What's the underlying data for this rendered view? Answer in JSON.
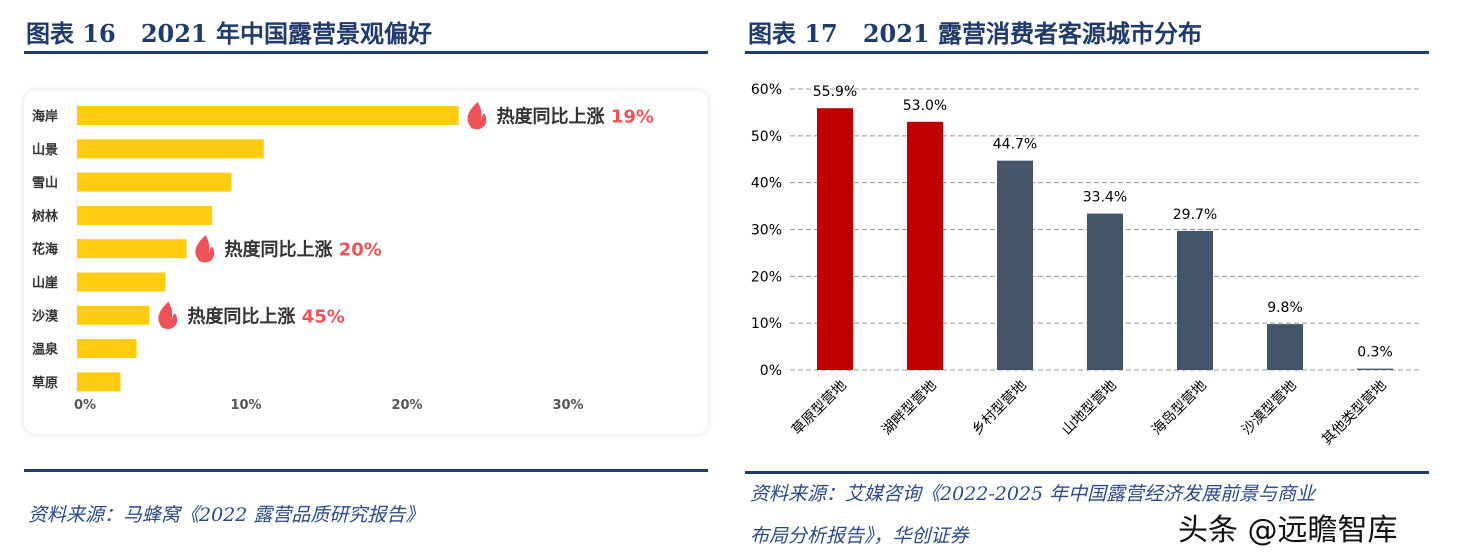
{
  "left": {
    "title": "图表 16   2021 年中国露营景观偏好",
    "source": "资料来源：马蜂窝《2022 露营品质研究报告》"
  },
  "right": {
    "title": "图表 17   2021 露营消费者客源城市分布",
    "source_line1": "资料来源：艾媒咨询《2022-2025 年中国露营经济发展前景与商业",
    "source_line2": "布局分析报告》，华创证券"
  },
  "watermark": "头条 @远瞻智库",
  "chart_data": [
    {
      "type": "bar",
      "orientation": "horizontal",
      "categories": [
        "海岸",
        "山景",
        "雪山",
        "树林",
        "花海",
        "山崖",
        "沙漠",
        "温泉",
        "草原"
      ],
      "values": [
        23.7,
        11.6,
        9.6,
        8.4,
        6.8,
        5.5,
        4.5,
        3.7,
        2.7
      ],
      "xlim": [
        0,
        35
      ],
      "xticks": [
        "0%",
        "10%",
        "20%",
        "30%"
      ],
      "bar_color": "#FFCC0F",
      "annotations": [
        {
          "category": "海岸",
          "icon": "flame-icon",
          "text": "热度同比上涨",
          "value": "19%"
        },
        {
          "category": "花海",
          "icon": "flame-icon",
          "text": "热度同比上涨",
          "value": "20%"
        },
        {
          "category": "沙漠",
          "icon": "flame-icon",
          "text": "热度同比上涨",
          "value": "45%"
        }
      ],
      "annotation_color": "#F0525A"
    },
    {
      "type": "bar",
      "categories": [
        "草原型营地",
        "湖畔型营地",
        "乡村型营地",
        "山地型营地",
        "海岛型营地",
        "沙漠型营地",
        "其他类型营地"
      ],
      "values": [
        55.9,
        53.0,
        44.7,
        33.4,
        29.7,
        9.8,
        0.3
      ],
      "labels": [
        "55.9%",
        "53.0%",
        "44.7%",
        "33.4%",
        "29.7%",
        "9.8%",
        "0.3%"
      ],
      "colors": [
        "#C00000",
        "#C00000",
        "#44546A",
        "#44546A",
        "#44546A",
        "#44546A",
        "#44546A"
      ],
      "ylim": [
        0,
        60
      ],
      "yticks": [
        "0%",
        "10%",
        "20%",
        "30%",
        "40%",
        "50%",
        "60%"
      ],
      "grid": true
    }
  ]
}
